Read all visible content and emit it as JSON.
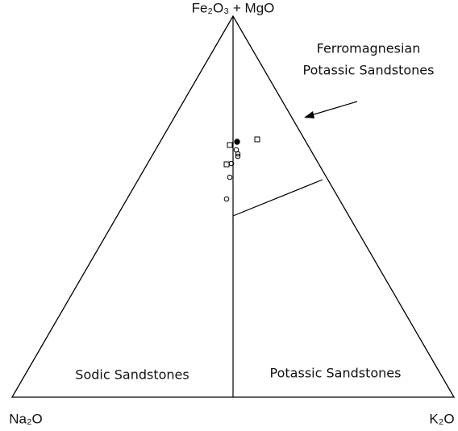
{
  "apex_labels": {
    "top": "Fe₂O₃ + MgO",
    "left": "Na₂O",
    "right": "K₂O"
  },
  "fields": {
    "ferromagnesian_line1": "Ferromagnesian",
    "ferromagnesian_line2": "Potassic Sandstones",
    "sodic": "Sodic Sandstones",
    "potassic": "Potassic Sandstones"
  }
}
